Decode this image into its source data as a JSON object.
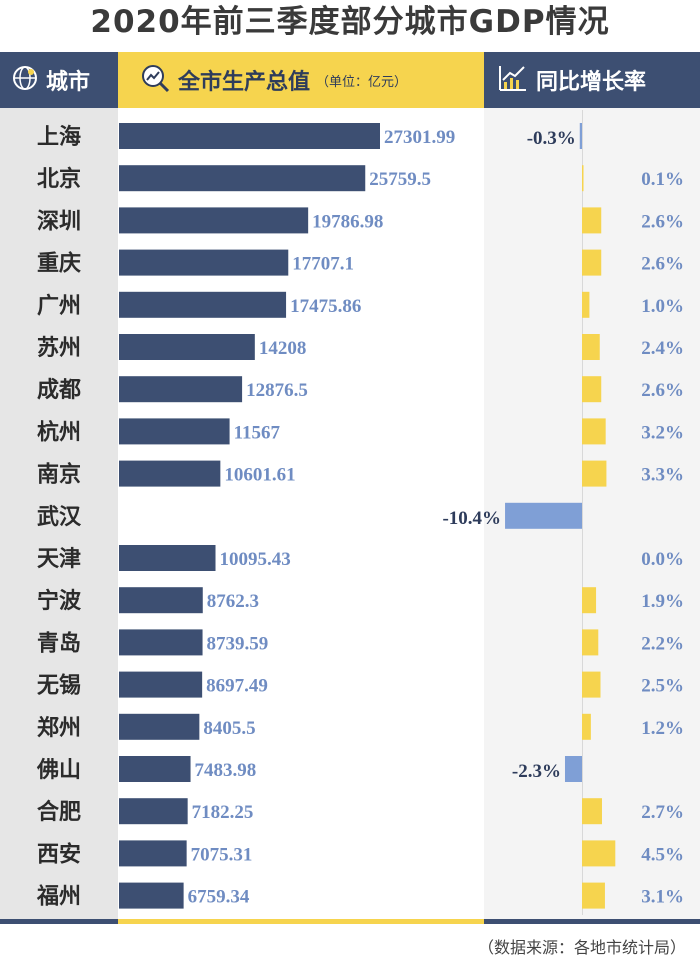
{
  "title": "2020年前三季度部分城市GDP情况",
  "header": {
    "city_label": "城市",
    "gdp_label": "全市生产总值",
    "gdp_unit": "（单位：亿元）",
    "growth_label": "同比增长率"
  },
  "source": "（数据来源：各地市统计局）",
  "colors": {
    "navy": "#3d4f72",
    "gdp_bar": "#3d4f72",
    "growth_pos": "#f6d44e",
    "growth_neg": "#7f9fd6",
    "value_text": "#6f8cc2"
  },
  "chart_data": [
    {
      "type": "bar",
      "orientation": "horizontal",
      "title": "全市生产总值",
      "unit": "亿元",
      "categories": [
        "上海",
        "北京",
        "深圳",
        "重庆",
        "广州",
        "苏州",
        "成都",
        "杭州",
        "南京",
        "武汉",
        "天津",
        "宁波",
        "青岛",
        "无锡",
        "郑州",
        "佛山",
        "合肥",
        "西安",
        "福州"
      ],
      "values": [
        27301.99,
        25759.5,
        19786.98,
        17707.1,
        17475.86,
        14208,
        12876.5,
        11567,
        10601.61,
        null,
        10095.43,
        8762.3,
        8739.59,
        8697.49,
        8405.5,
        7483.98,
        7182.25,
        7075.31,
        6759.34
      ],
      "labels": [
        "27301.99",
        "25759.5",
        "19786.98",
        "17707.1",
        "17475.86",
        "14208",
        "12876.5",
        "11567",
        "10601.61",
        "",
        "10095.43",
        "8762.3",
        "8739.59",
        "8697.49",
        "8405.5",
        "7483.98",
        "7182.25",
        "7075.31",
        "6759.34"
      ],
      "xlim": [
        0,
        32000
      ]
    },
    {
      "type": "bar",
      "orientation": "horizontal",
      "title": "同比增长率",
      "unit": "%",
      "categories": [
        "上海",
        "北京",
        "深圳",
        "重庆",
        "广州",
        "苏州",
        "成都",
        "杭州",
        "南京",
        "武汉",
        "天津",
        "宁波",
        "青岛",
        "无锡",
        "郑州",
        "佛山",
        "合肥",
        "西安",
        "福州"
      ],
      "values": [
        -0.3,
        0.1,
        2.6,
        2.6,
        1.0,
        2.4,
        2.6,
        3.2,
        3.3,
        -10.4,
        0.0,
        1.9,
        2.2,
        2.5,
        1.2,
        -2.3,
        2.7,
        4.5,
        3.1
      ],
      "labels": [
        "-0.3%",
        "0.1%",
        "2.6%",
        "2.6%",
        "1.0%",
        "2.4%",
        "2.6%",
        "3.2%",
        "3.3%",
        "-10.4%",
        "0.0%",
        "1.9%",
        "2.2%",
        "2.5%",
        "1.2%",
        "-2.3%",
        "2.7%",
        "4.5%",
        "3.1%"
      ]
    }
  ]
}
